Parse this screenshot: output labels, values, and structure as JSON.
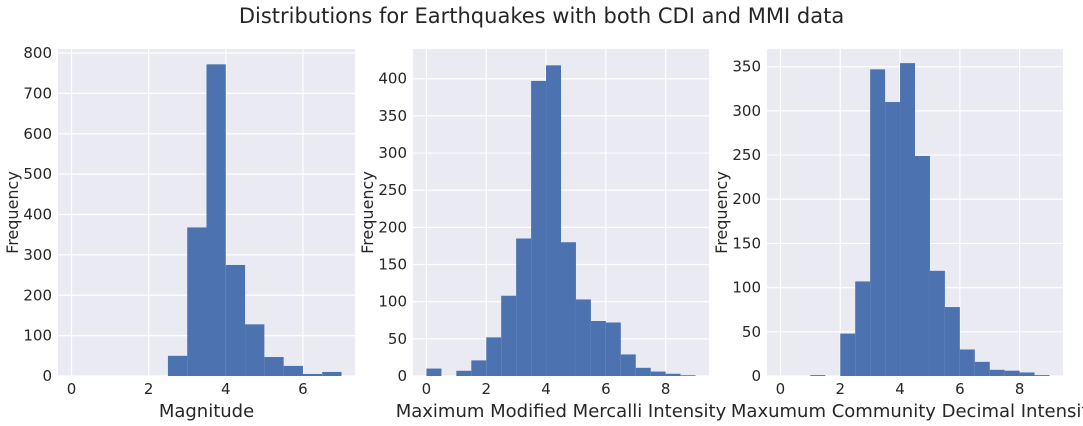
{
  "figure": {
    "title": "Distributions for Earthquakes with both CDI and MMI data"
  },
  "style": {
    "panel_bg": "#EAEAF2",
    "grid": "#FFFFFF",
    "bar": "#4C72B0",
    "text": "#262626"
  },
  "chart_data": [
    {
      "type": "bar",
      "title": "",
      "xlabel": "Magnitude",
      "ylabel": "Frequency",
      "xlim": [
        -0.35,
        7.35
      ],
      "ylim": [
        0,
        810
      ],
      "xticks": [
        "0",
        "2",
        "4",
        "6"
      ],
      "yticks": [
        "0",
        "100",
        "200",
        "300",
        "400",
        "500",
        "600",
        "700",
        "800"
      ],
      "bin_edges": [
        2.5,
        3.0,
        3.5,
        4.0,
        4.5,
        5.0,
        5.5,
        6.0,
        6.5,
        7.0
      ],
      "values": [
        50,
        368,
        772,
        275,
        128,
        47,
        25,
        5,
        10
      ]
    },
    {
      "type": "bar",
      "title": "",
      "xlabel": "Maximum Modified Mercalli Intensity",
      "ylabel": "Frequency",
      "xlim": [
        -0.45,
        9.45
      ],
      "ylim": [
        0,
        440
      ],
      "xticks": [
        "0",
        "2",
        "4",
        "6",
        "8"
      ],
      "yticks": [
        "0",
        "50",
        "100",
        "150",
        "200",
        "250",
        "300",
        "350",
        "400"
      ],
      "bin_edges": [
        0.0,
        0.5,
        1.0,
        1.5,
        2.0,
        2.5,
        3.0,
        3.5,
        4.0,
        4.5,
        5.0,
        5.5,
        6.0,
        6.5,
        7.0,
        7.5,
        8.0,
        8.5,
        9.0
      ],
      "values": [
        10,
        0,
        7,
        21,
        52,
        108,
        185,
        397,
        418,
        180,
        103,
        74,
        72,
        29,
        11,
        6,
        3,
        1
      ]
    },
    {
      "type": "bar",
      "title": "",
      "xlabel": "Maxumum Community Decimal Intensity",
      "ylabel": "Frequency",
      "xlim": [
        -0.45,
        9.45
      ],
      "ylim": [
        0,
        370
      ],
      "xticks": [
        "0",
        "2",
        "4",
        "6",
        "8"
      ],
      "yticks": [
        "0",
        "50",
        "100",
        "150",
        "200",
        "250",
        "300",
        "350"
      ],
      "bin_edges": [
        0.0,
        0.5,
        1.0,
        1.5,
        2.0,
        2.5,
        3.0,
        3.5,
        4.0,
        4.5,
        5.0,
        5.5,
        6.0,
        6.5,
        7.0,
        7.5,
        8.0,
        8.5,
        9.0
      ],
      "values": [
        0,
        0,
        1,
        0,
        48,
        107,
        347,
        310,
        354,
        249,
        119,
        78,
        30,
        16,
        7,
        6,
        4,
        1
      ]
    }
  ]
}
